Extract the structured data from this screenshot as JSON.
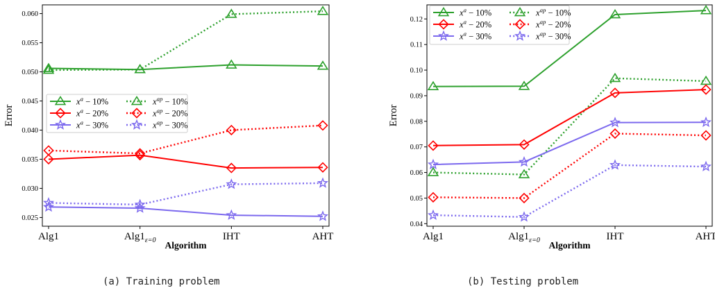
{
  "captions": [
    "(a)  Training problem",
    "(b)  Testing problem"
  ],
  "colors": {
    "green": "#2ca02c",
    "red": "#ff0000",
    "purple": "#7b68ee"
  },
  "legend_entries": [
    {
      "base": "x",
      "sup": "a",
      "suffix": " − 10%",
      "color": "green",
      "marker": "triangle",
      "dotted": false
    },
    {
      "base": "x",
      "sup": "a",
      "suffix": " − 20%",
      "color": "red",
      "marker": "diamond",
      "dotted": false
    },
    {
      "base": "x",
      "sup": "a",
      "suffix": " − 30%",
      "color": "purple",
      "marker": "star",
      "dotted": false
    },
    {
      "base": "x",
      "sup": "ap",
      "suffix": " − 10%",
      "color": "green",
      "marker": "triangle",
      "dotted": true
    },
    {
      "base": "x",
      "sup": "ap",
      "suffix": " − 20%",
      "color": "red",
      "marker": "diamond",
      "dotted": true
    },
    {
      "base": "x",
      "sup": "ap",
      "suffix": " − 30%",
      "color": "purple",
      "marker": "star",
      "dotted": true
    }
  ],
  "chart_data": [
    {
      "type": "line",
      "categories": [
        "Alg1",
        "Alg1",
        "IHT",
        "AHT"
      ],
      "category_subscripts": [
        "",
        "ε=0",
        "",
        ""
      ],
      "xlabel": "Algorithm",
      "ylabel": "Error",
      "ylim": [
        0.0235,
        0.0615
      ],
      "yticks": [
        0.025,
        0.03,
        0.035,
        0.04,
        0.045,
        0.05,
        0.055,
        0.06
      ],
      "ytick_labels": [
        "0.025",
        "0.030",
        "0.035",
        "0.040",
        "0.045",
        "0.050",
        "0.055",
        "0.060"
      ],
      "legend_position": "center-left",
      "series": [
        {
          "name": "x^a − 10%",
          "values": [
            0.0506,
            0.0504,
            0.0512,
            0.051
          ]
        },
        {
          "name": "x^a − 20%",
          "values": [
            0.035,
            0.0357,
            0.0335,
            0.0336
          ]
        },
        {
          "name": "x^a − 30%",
          "values": [
            0.0268,
            0.0266,
            0.0254,
            0.0252
          ]
        },
        {
          "name": "x^ap − 10%",
          "values": [
            0.0503,
            0.0504,
            0.0599,
            0.0604
          ]
        },
        {
          "name": "x^ap − 20%",
          "values": [
            0.0365,
            0.036,
            0.04,
            0.0408
          ]
        },
        {
          "name": "x^ap − 30%",
          "values": [
            0.0275,
            0.0272,
            0.0307,
            0.0309
          ]
        }
      ]
    },
    {
      "type": "line",
      "categories": [
        "Alg1",
        "Alg1",
        "IHT",
        "AHT"
      ],
      "category_subscripts": [
        "",
        "ε=0",
        "",
        ""
      ],
      "xlabel": "Algorithm",
      "ylabel": "Error",
      "ylim": [
        0.039,
        0.1255
      ],
      "yticks": [
        0.04,
        0.05,
        0.06,
        0.07,
        0.08,
        0.09,
        0.1,
        0.11,
        0.12
      ],
      "ytick_labels": [
        "0.04",
        "0.05",
        "0.06",
        "0.07",
        "0.08",
        "0.09",
        "0.10",
        "0.11",
        "0.12"
      ],
      "legend_position": "top-left",
      "series": [
        {
          "name": "x^a − 10%",
          "values": [
            0.0936,
            0.0937,
            0.1217,
            0.1233
          ]
        },
        {
          "name": "x^a − 20%",
          "values": [
            0.0705,
            0.0709,
            0.0911,
            0.0924
          ]
        },
        {
          "name": "x^a − 30%",
          "values": [
            0.0631,
            0.0641,
            0.0795,
            0.0796
          ]
        },
        {
          "name": "x^ap − 10%",
          "values": [
            0.06,
            0.0592,
            0.0968,
            0.0957
          ]
        },
        {
          "name": "x^ap − 20%",
          "values": [
            0.0503,
            0.05,
            0.0752,
            0.0745
          ]
        },
        {
          "name": "x^ap − 30%",
          "values": [
            0.0433,
            0.0426,
            0.0629,
            0.0623
          ]
        }
      ]
    }
  ]
}
